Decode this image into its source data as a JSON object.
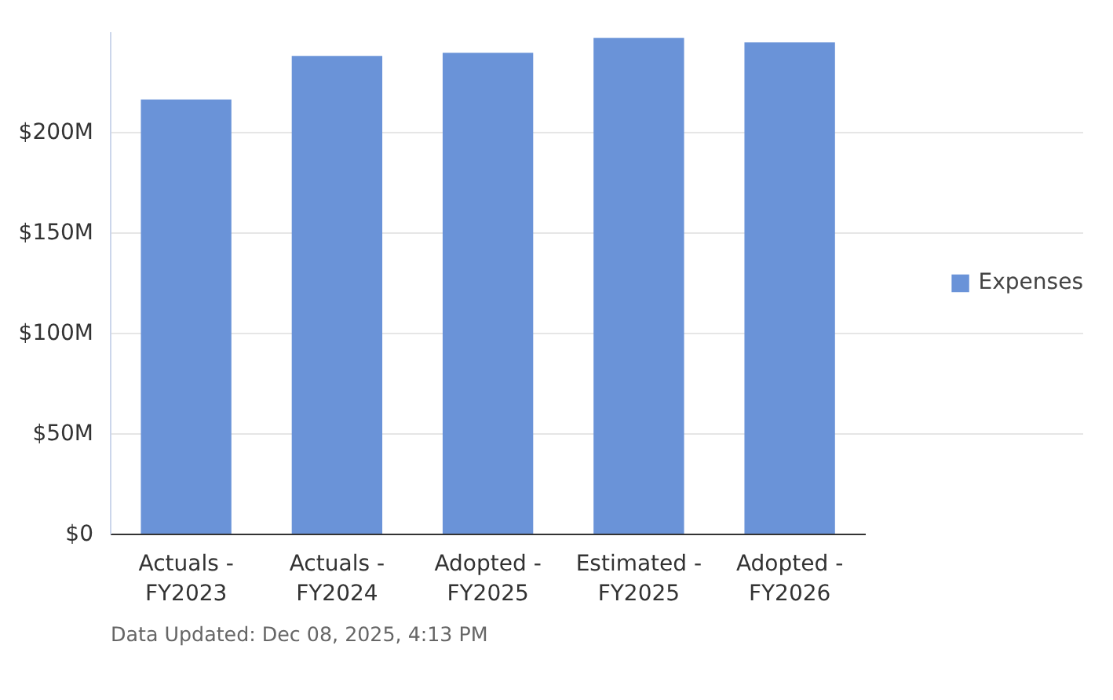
{
  "chart_data": {
    "type": "bar",
    "categories": [
      "Actuals -\nFY2023",
      "Actuals -\nFY2024",
      "Adopted -\nFY2025",
      "Estimated -\nFY2025",
      "Adopted -\nFY2026"
    ],
    "series": [
      {
        "name": "Expenses",
        "color": "#6a93d8",
        "values": [
          216.5,
          238.2,
          239.7,
          247.2,
          244.9
        ]
      }
    ],
    "ylim": [
      0,
      250
    ],
    "yticks": [
      {
        "value": 0,
        "label": "$0"
      },
      {
        "value": 50,
        "label": "$50M"
      },
      {
        "value": 100,
        "label": "$100M"
      },
      {
        "value": 150,
        "label": "$150M"
      },
      {
        "value": 200,
        "label": "$200M"
      }
    ],
    "grid": "y",
    "legend": "right",
    "annotations": [
      "Data Updated: Dec 08, 2025, 4:13 PM"
    ]
  }
}
